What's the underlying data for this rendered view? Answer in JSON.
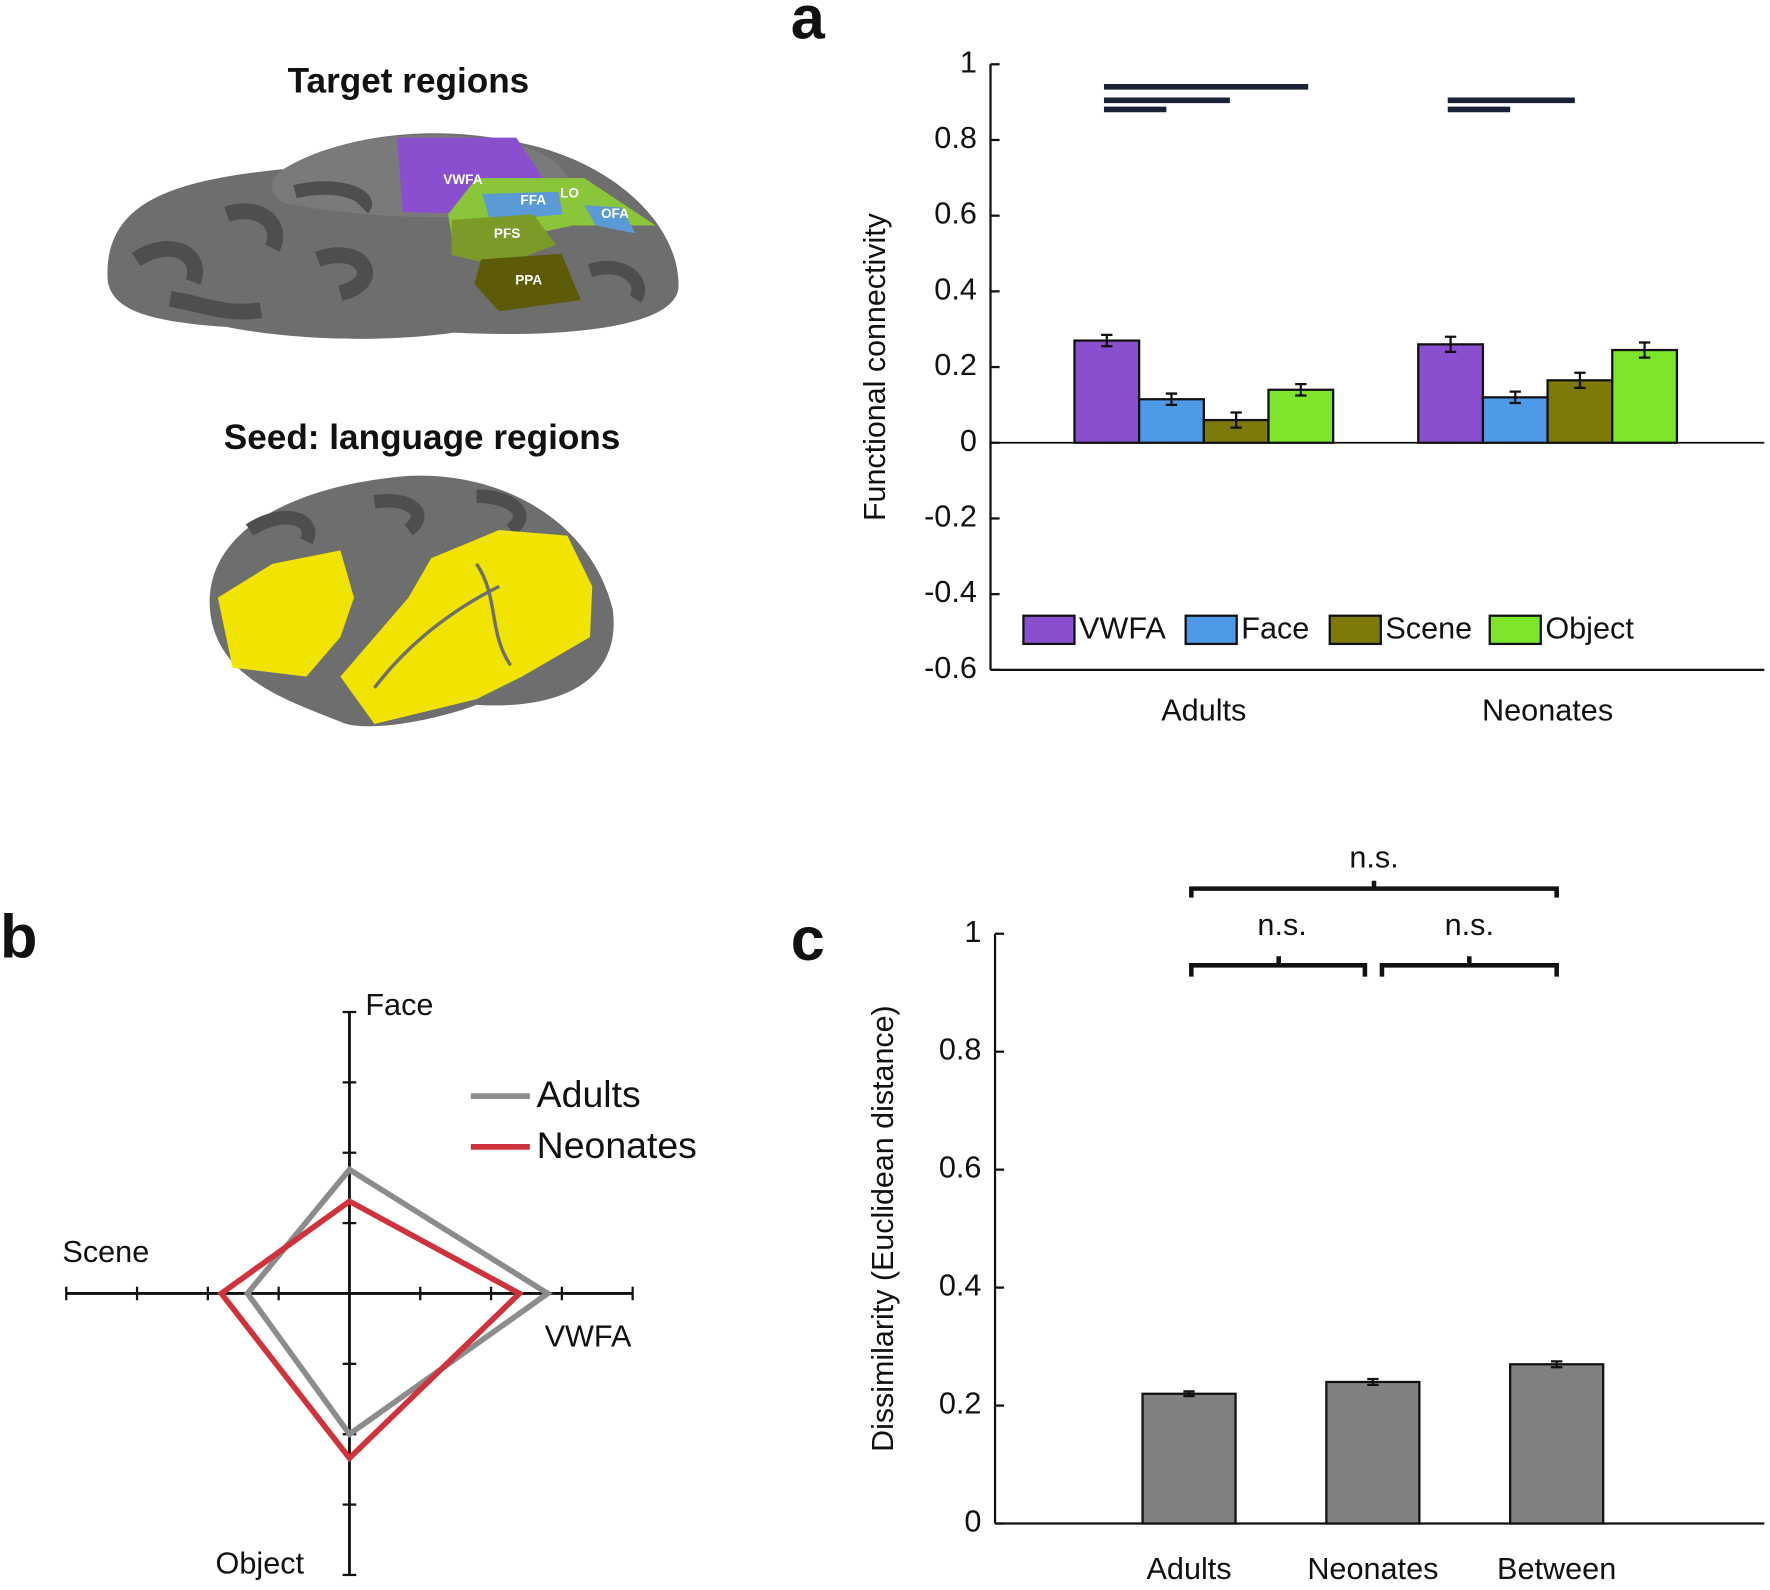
{
  "panel_labels": {
    "a": "a",
    "b": "b",
    "c": "c"
  },
  "brain": {
    "target_title": "Target regions",
    "regions": [
      "VWFA",
      "FFA",
      "LO",
      "OFA",
      "PFS",
      "PPA"
    ],
    "seed_title": "Seed: language regions"
  },
  "chart_data": [
    {
      "type": "bar",
      "ylabel": "Functional connectivity",
      "categories": [
        "Adults",
        "Neonates"
      ],
      "series": [
        {
          "name": "VWFA",
          "color": "#8a4fcf",
          "values": [
            0.27,
            0.26
          ],
          "errors": [
            0.015,
            0.02
          ]
        },
        {
          "name": "Face",
          "color": "#4f9ae8",
          "values": [
            0.115,
            0.12
          ],
          "errors": [
            0.015,
            0.015
          ]
        },
        {
          "name": "Scene",
          "color": "#7d7a0a",
          "values": [
            0.06,
            0.165
          ],
          "errors": [
            0.02,
            0.02
          ]
        },
        {
          "name": "Object",
          "color": "#7ee62a",
          "values": [
            0.14,
            0.245
          ],
          "errors": [
            0.015,
            0.02
          ]
        }
      ],
      "ylim": [
        -0.6,
        1
      ],
      "yticks": [
        -0.6,
        -0.4,
        -0.2,
        0,
        0.2,
        0.4,
        0.6,
        0.8,
        1
      ],
      "legend": "lower center"
    },
    {
      "type": "radar",
      "axes": [
        "VWFA",
        "Face",
        "Scene",
        "Object"
      ],
      "series": [
        {
          "name": "Adults",
          "color": "#8c8c8c",
          "values": [
            2.8,
            1.76,
            1.44,
            2.0
          ]
        },
        {
          "name": "Neonates",
          "color": "#d0323c",
          "values": [
            2.4,
            1.31,
            1.81,
            2.34
          ]
        }
      ],
      "rlim": [
        0,
        4
      ],
      "rticks": [
        1,
        2,
        3,
        4
      ],
      "legend": "upper right"
    },
    {
      "type": "bar",
      "ylabel": "Dissimilarity (Euclidean distance)",
      "categories": [
        "Adults",
        "Neonates",
        "Between"
      ],
      "series": [
        {
          "name": null,
          "color": "#808080",
          "values": [
            0.22,
            0.24,
            0.27
          ],
          "errors": [
            0.004,
            0.005,
            0.005
          ]
        }
      ],
      "ylim": [
        0,
        1
      ],
      "yticks": [
        0,
        0.2,
        0.4,
        0.6,
        0.8,
        1
      ],
      "annotations": [
        "n.s.",
        "n.s.",
        "n.s."
      ]
    }
  ]
}
